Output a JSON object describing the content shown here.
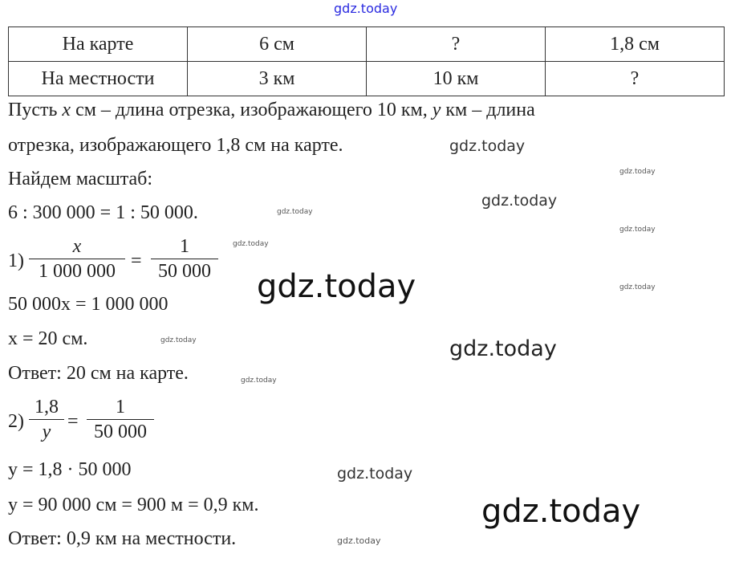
{
  "table": {
    "rows": [
      {
        "label": "На карте",
        "cells": [
          "6 см",
          "?",
          "1,8 см"
        ]
      },
      {
        "label": "На местности",
        "cells": [
          "3 км",
          "10 км",
          "?"
        ]
      }
    ]
  },
  "solution": {
    "intro_1a": "Пусть ",
    "intro_1x": "x",
    "intro_1b": " см – длина отрезка, изображающего 10 км, ",
    "intro_1y": "y",
    "intro_1c": " км – длина",
    "intro_2": "отрезка, изображающего 1,8 см на карте.",
    "scale_heading": "Найдем масштаб:",
    "scale_eq": "6 : 300 000 = 1 : 50 000.",
    "step1_label": "1)",
    "step1_num_left": "x",
    "step1_den_left": "1 000 000",
    "step1_equals": "=",
    "step1_num_right": "1",
    "step1_den_right": "50 000",
    "step1_line2": "50 000x = 1 000 000",
    "step1_line3": "x = 20 см.",
    "answer1": "Ответ: 20 см на карте.",
    "step2_label": "2)",
    "step2_num_left": "1,8",
    "step2_den_left": "y",
    "step2_equals": "=",
    "step2_num_right": "1",
    "step2_den_right": "50 000",
    "step2_line2": "y = 1,8 · 50 000",
    "step2_line3": "y = 90 000 см = 900 м = 0,9 км.",
    "answer2": "Ответ: 0,9 км на местности."
  },
  "watermark": {
    "text": "gdz.today",
    "top_color": "#2a2ae0"
  }
}
